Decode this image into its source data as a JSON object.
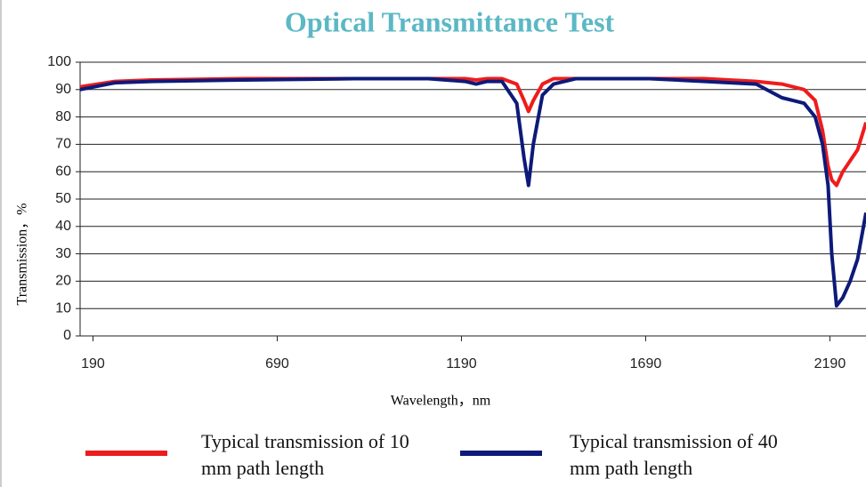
{
  "chart_data": {
    "type": "line",
    "title": "Optical Transmittance Test",
    "xlabel": "Wavelength，nm",
    "ylabel": "Transmission，%",
    "x": [
      155,
      250,
      350,
      600,
      900,
      1100,
      1200,
      1230,
      1260,
      1300,
      1340,
      1360,
      1372,
      1385,
      1410,
      1440,
      1500,
      1700,
      1850,
      1990,
      2060,
      2120,
      2150,
      2170,
      2185,
      2195,
      2208,
      2225,
      2245,
      2265,
      2288
    ],
    "series": [
      {
        "name": "Typical transmission of 10 mm path length",
        "color": "#ee1c1c",
        "values": [
          91,
          93,
          93.5,
          94,
          94,
          94,
          94,
          93.5,
          94,
          94,
          92,
          86,
          82,
          86,
          92,
          94,
          94,
          94,
          94,
          93,
          92,
          90,
          86,
          75,
          62,
          57,
          55,
          60,
          64,
          68,
          78
        ]
      },
      {
        "name": "Typical transmission of 40 mm path length",
        "color": "#0d1a7a",
        "values": [
          90,
          92.5,
          93,
          93.5,
          94,
          94,
          93,
          92,
          93,
          93,
          85,
          65,
          55,
          70,
          88,
          92,
          94,
          94,
          93,
          92,
          87,
          85,
          80,
          70,
          55,
          30,
          11,
          14,
          20,
          28,
          45
        ]
      }
    ],
    "xlim": [
      155,
      2288
    ],
    "xticks": [
      190,
      690,
      1190,
      1690,
      2190
    ],
    "ylim": [
      0,
      100
    ],
    "yticks": [
      0,
      10,
      20,
      30,
      40,
      50,
      60,
      70,
      80,
      90,
      100
    ],
    "grid": true
  }
}
